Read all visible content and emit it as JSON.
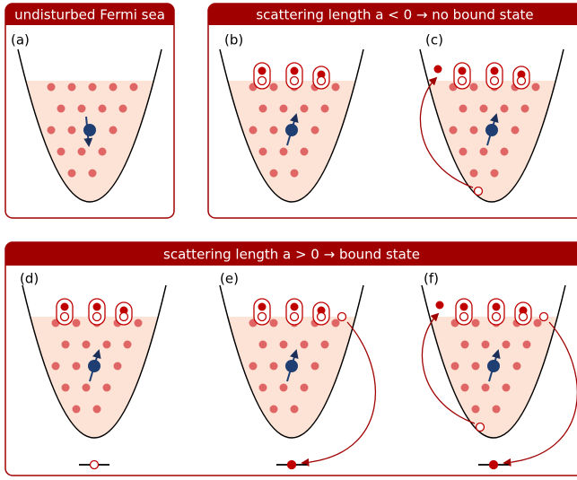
{
  "boxes": [
    {
      "title": "undisturbed Fermi sea",
      "panels": [
        "(a)"
      ]
    },
    {
      "title": "scattering length  a < 0  →  no bound state",
      "panels": [
        "(b)",
        "(c)"
      ]
    },
    {
      "title": "scattering length  a > 0  →  bound state",
      "panels": [
        "(d)",
        "(e)",
        "(f)"
      ]
    }
  ]
}
